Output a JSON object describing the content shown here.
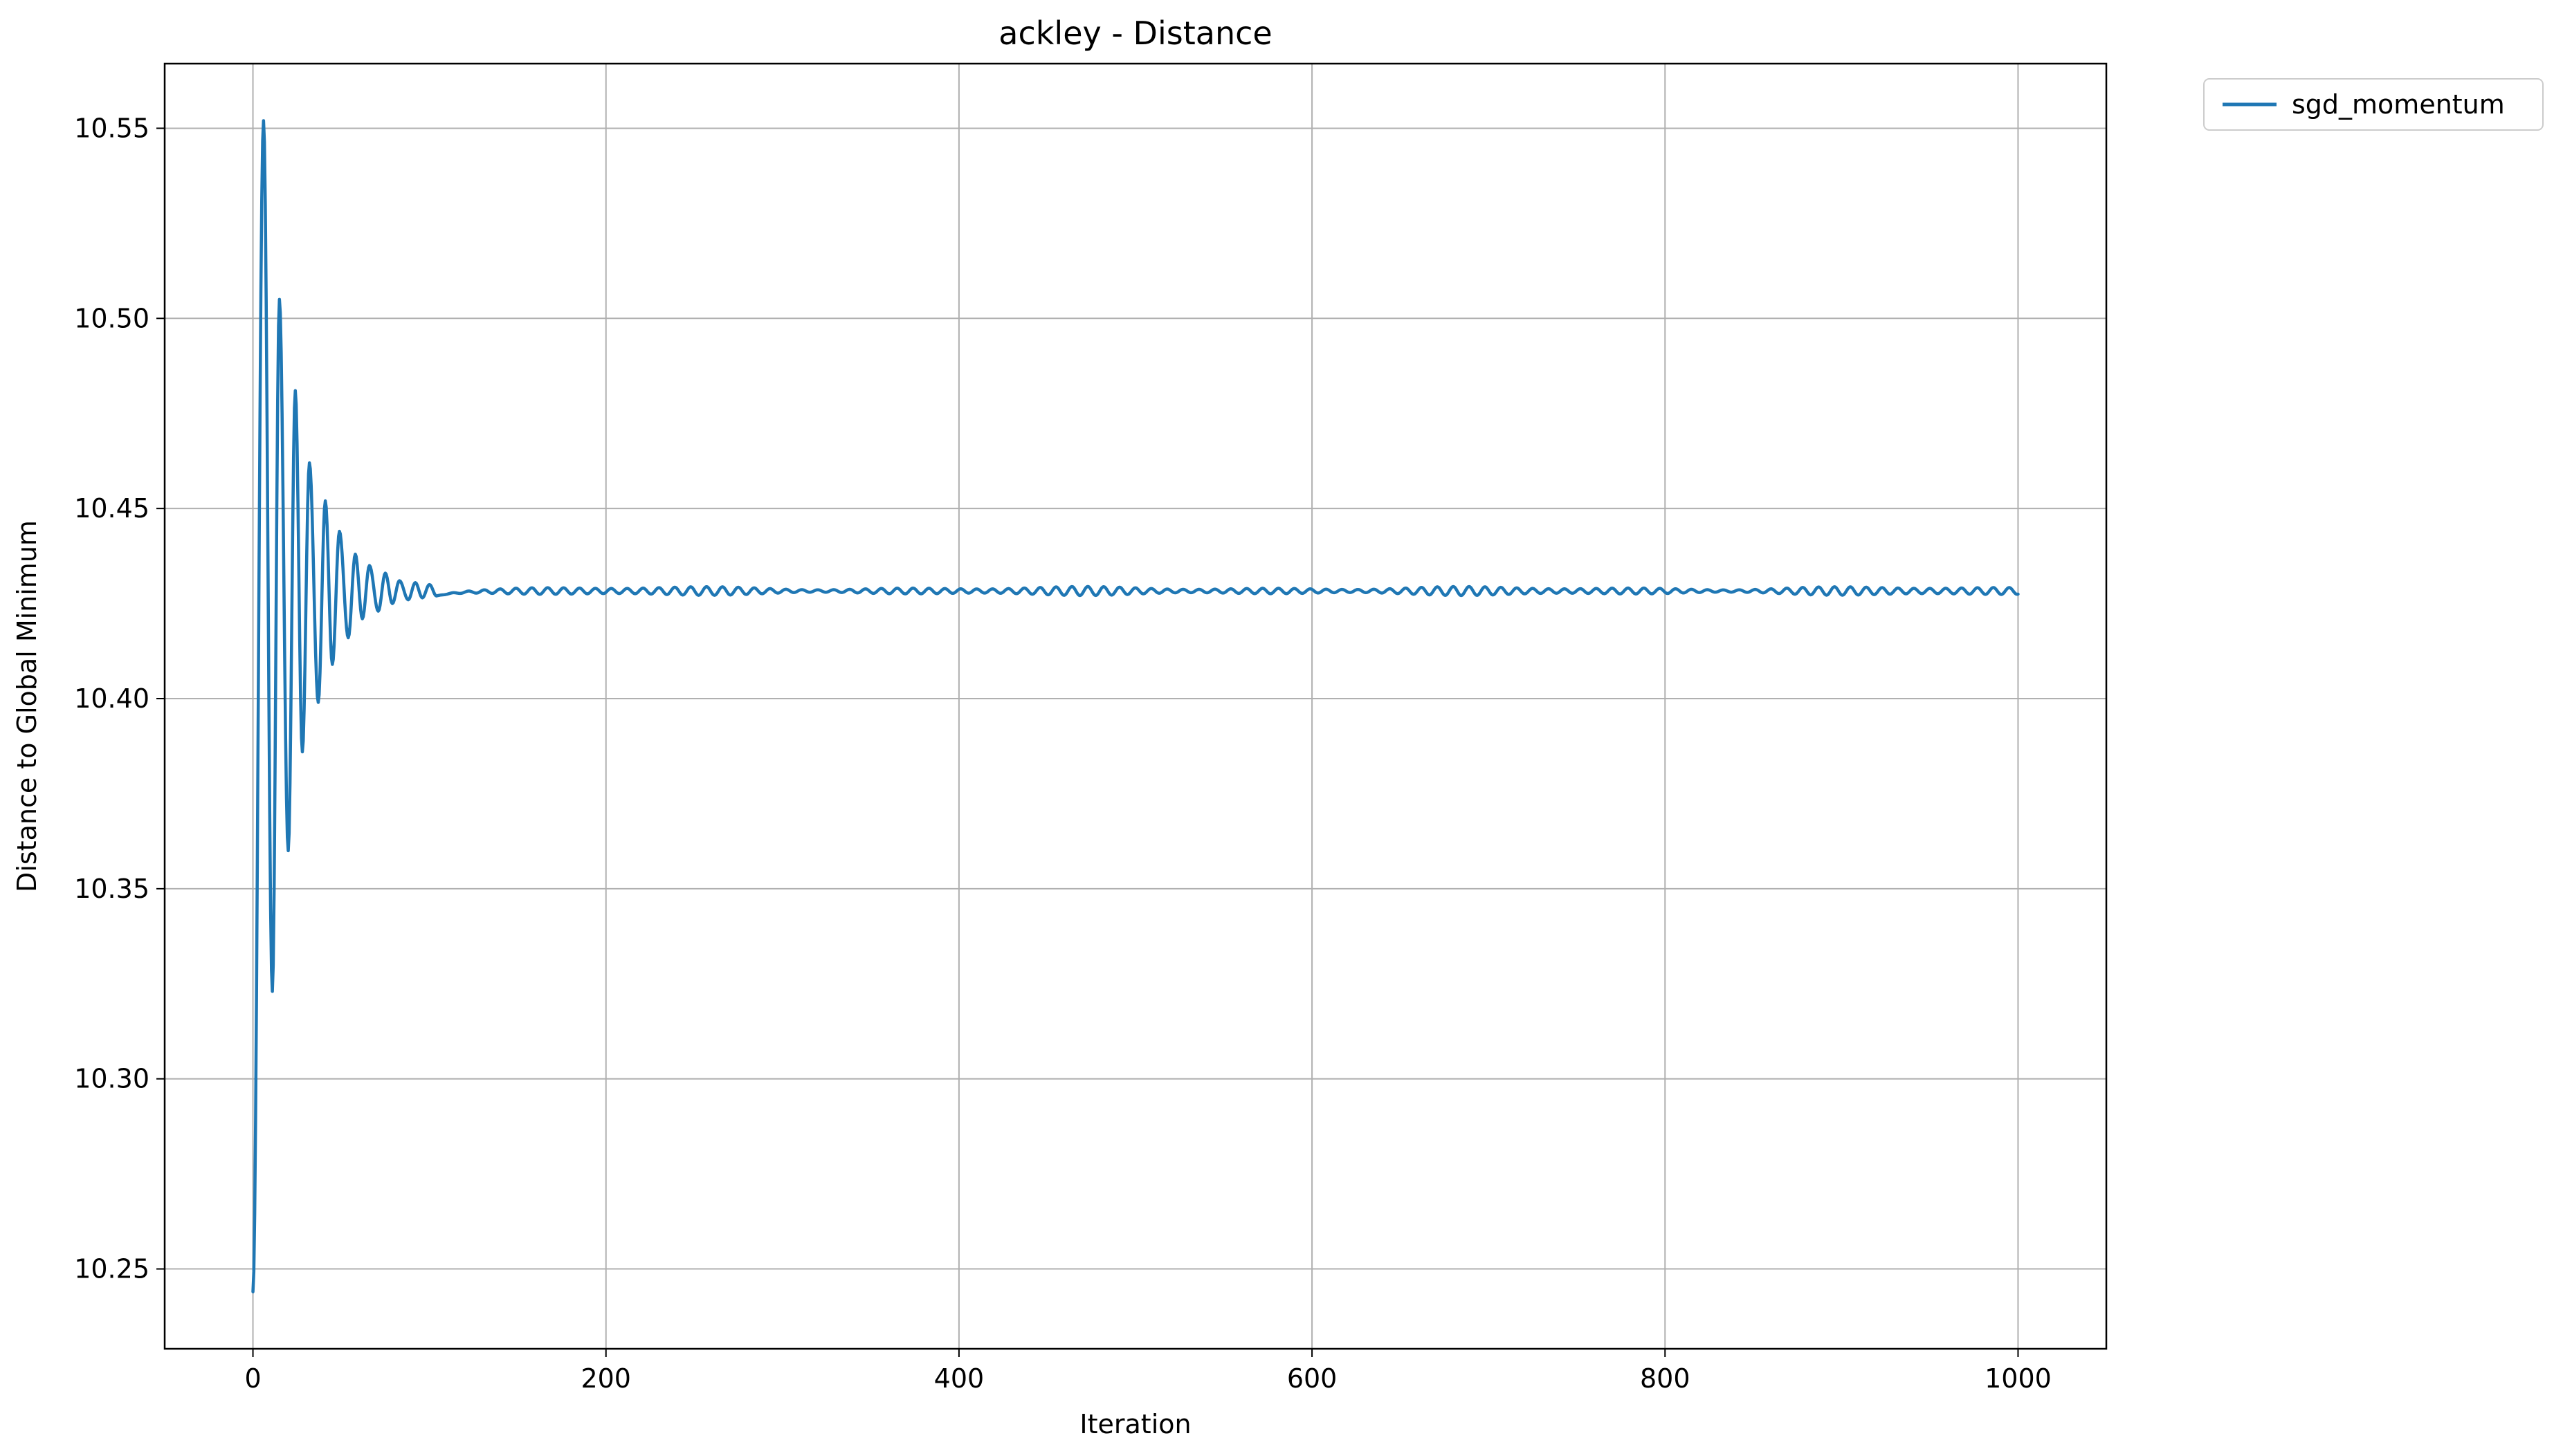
{
  "chart_data": {
    "type": "line",
    "title": "ackley - Distance",
    "xlabel": "Iteration",
    "ylabel": "Distance to Global Minimum",
    "xlim": [
      -50,
      1050
    ],
    "ylim": [
      10.229,
      10.567
    ],
    "xticks": [
      0,
      200,
      400,
      600,
      800,
      1000
    ],
    "yticks": [
      10.25,
      10.3,
      10.35,
      10.4,
      10.45,
      10.5,
      10.55
    ],
    "xtick_labels": [
      "0",
      "200",
      "400",
      "600",
      "800",
      "1000"
    ],
    "ytick_labels": [
      "10.25",
      "10.30",
      "10.35",
      "10.40",
      "10.45",
      "10.50",
      "10.55"
    ],
    "grid": true,
    "legend_position": "outside-top-right",
    "series": [
      {
        "name": "sgd_momentum",
        "color": "#1f77b4",
        "model": "damped_oscillation",
        "x_range": [
          0,
          1000
        ],
        "start_value": 10.244,
        "rise_end_iteration": 6,
        "steady_value": 10.4283,
        "peaks": [
          [
            6,
            10.552
          ],
          [
            15,
            10.505
          ],
          [
            24,
            10.481
          ],
          [
            32,
            10.462
          ],
          [
            41,
            10.452
          ],
          [
            49,
            10.444
          ],
          [
            58,
            10.438
          ],
          [
            66,
            10.435
          ],
          [
            75,
            10.433
          ],
          [
            83,
            10.431
          ],
          [
            92,
            10.4305
          ],
          [
            100,
            10.43
          ]
        ],
        "troughs": [
          [
            11,
            10.323
          ],
          [
            20,
            10.36
          ],
          [
            28,
            10.386
          ],
          [
            37,
            10.399
          ],
          [
            45,
            10.409
          ],
          [
            54,
            10.416
          ],
          [
            62,
            10.421
          ],
          [
            71,
            10.423
          ],
          [
            79,
            10.425
          ],
          [
            88,
            10.426
          ],
          [
            96,
            10.4265
          ],
          [
            104,
            10.427
          ]
        ],
        "residual_ripple_amplitude": 0.0012,
        "residual_ripple_period": 9
      }
    ]
  }
}
